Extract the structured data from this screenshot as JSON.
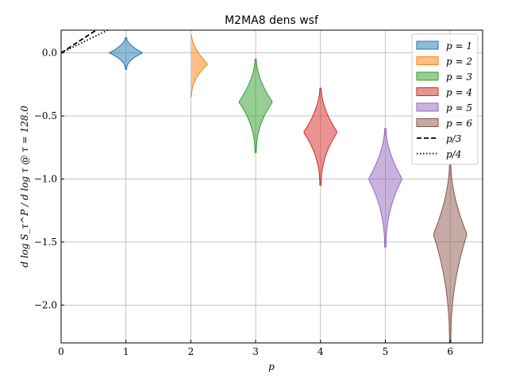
{
  "chart_data": {
    "type": "violin",
    "title": "M2MA8 dens wsf",
    "xlabel": "p",
    "ylabel": "d log S_τ^P / d log τ @ τ = 128.0",
    "xlim": [
      0,
      6.5
    ],
    "ylim": [
      -2.3,
      0.18
    ],
    "xticks": [
      0,
      1,
      2,
      3,
      4,
      5,
      6
    ],
    "yticks": [
      0.0,
      -0.5,
      -1.0,
      -1.5,
      -2.0
    ],
    "xtick_labels": [
      "0",
      "1",
      "2",
      "3",
      "4",
      "5",
      "6"
    ],
    "ytick_labels": [
      "0.0",
      "−0.5",
      "−1.0",
      "−1.5",
      "−2.0"
    ],
    "grid": true,
    "legend_position": "top-right",
    "series": [
      {
        "name": "p = 1",
        "x": 1,
        "color": "#1f77b4",
        "center": 0.0,
        "min": -0.13,
        "max": 0.12,
        "max_half_width": 0.26
      },
      {
        "name": "p = 2",
        "x": 2,
        "color": "#ff7f0e",
        "center": -0.09,
        "min": -0.35,
        "max": 0.15,
        "max_half_width": 0.26
      },
      {
        "name": "p = 3",
        "x": 3,
        "color": "#2ca02c",
        "center": -0.39,
        "min": -0.79,
        "max": -0.05,
        "max_half_width": 0.26
      },
      {
        "name": "p = 4",
        "x": 4,
        "color": "#d62728",
        "center": -0.63,
        "min": -1.05,
        "max": -0.28,
        "max_half_width": 0.26
      },
      {
        "name": "p = 5",
        "x": 5,
        "color": "#9467bd",
        "center": -1.0,
        "min": -1.54,
        "max": -0.6,
        "max_half_width": 0.26
      },
      {
        "name": "p = 6",
        "x": 6,
        "color": "#8c564b",
        "center": -1.44,
        "min": -2.3,
        "max": -0.88,
        "max_half_width": 0.26
      }
    ],
    "reference_lines": [
      {
        "name": "p/3",
        "style": "dashed",
        "slope": 0.3333
      },
      {
        "name": "p/4",
        "style": "dotted",
        "slope": 0.25
      }
    ]
  }
}
